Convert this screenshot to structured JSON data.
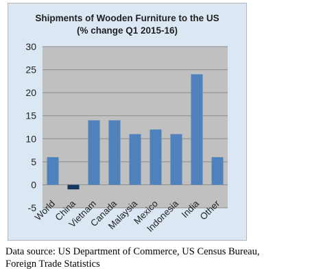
{
  "chart_data": {
    "type": "bar",
    "title_line1": "Shipments of Wooden Furniture to the US",
    "title_line2": "(% change Q1  2015-16)",
    "xlabel": "",
    "ylabel": "",
    "ylim": [
      -5,
      30
    ],
    "yticks": [
      -5,
      0,
      5,
      10,
      15,
      20,
      25,
      30
    ],
    "grid": true,
    "categories": [
      "World",
      "China",
      "Vietnam",
      "Canada",
      "Malaysia",
      "Mexico",
      "Indonesia",
      "India",
      "Other"
    ],
    "values": [
      6,
      -1,
      14,
      14,
      11,
      12,
      11,
      24,
      6
    ],
    "bar_color": "#4f81bd",
    "negative_bar_color": "#17375e"
  },
  "caption": {
    "line1": "Data source: US Department of Commerce, US Census Bureau,",
    "line2": "Foreign Trade Statistics"
  }
}
